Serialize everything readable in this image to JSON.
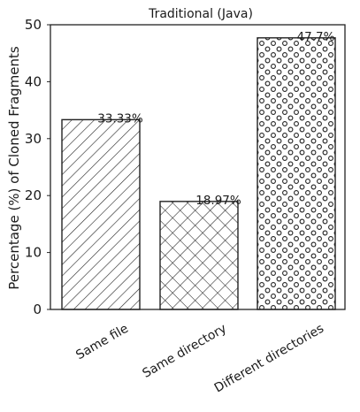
{
  "chart_data": {
    "type": "bar",
    "title": "Traditional (Java)",
    "xlabel": "",
    "ylabel": "Percentage (%) of Cloned Fragments",
    "categories": [
      "Same file",
      "Same directory",
      "Different directories"
    ],
    "values": [
      33.33,
      18.97,
      47.7
    ],
    "data_labels": [
      "33.33%",
      "18.97%",
      "47.7%"
    ],
    "patterns": [
      "diagonal-hatch",
      "cross-hatch",
      "circles"
    ],
    "bar_fill": "#ffffff",
    "bar_edge_color": "#222222",
    "ylim": [
      0,
      50
    ],
    "yticks": [
      0,
      10,
      20,
      30,
      40,
      50
    ],
    "grid": false,
    "legend": "none"
  }
}
